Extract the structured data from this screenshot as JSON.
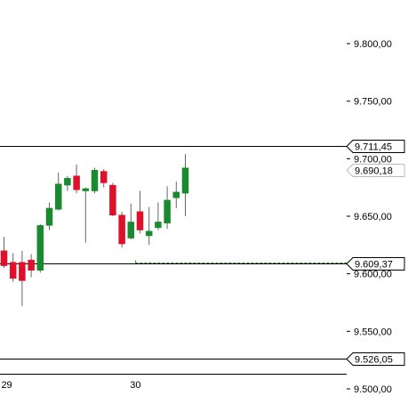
{
  "chart_data": {
    "type": "candlestick",
    "ylim": [
      9500,
      9830
    ],
    "y_ticks": [
      {
        "value": 9800,
        "label": "9.800,00"
      },
      {
        "value": 9750,
        "label": "9.750,00"
      },
      {
        "value": 9700,
        "label": "9.700,00"
      },
      {
        "value": 9650,
        "label": "9.650,00"
      },
      {
        "value": 9600,
        "label": "9.600,00"
      },
      {
        "value": 9550,
        "label": "9.550,00"
      },
      {
        "value": 9500,
        "label": "9.500,00"
      }
    ],
    "x_labels": [
      {
        "index": -0.3,
        "label": "29"
      },
      {
        "index": 13.9,
        "label": "30"
      }
    ],
    "candles": [
      {
        "open": 9620,
        "high": 9632,
        "low": 9605,
        "close": 9607
      },
      {
        "open": 9610,
        "high": 9618,
        "low": 9593,
        "close": 9596
      },
      {
        "open": 9610,
        "high": 9620,
        "low": 9572,
        "close": 9594
      },
      {
        "open": 9612,
        "high": 9617,
        "low": 9597,
        "close": 9603
      },
      {
        "open": 9603,
        "high": 9643,
        "low": 9601,
        "close": 9642
      },
      {
        "open": 9642,
        "high": 9662,
        "low": 9638,
        "close": 9657
      },
      {
        "open": 9656,
        "high": 9688,
        "low": 9655,
        "close": 9678
      },
      {
        "open": 9677,
        "high": 9685,
        "low": 9672,
        "close": 9683
      },
      {
        "open": 9685,
        "high": 9695,
        "low": 9670,
        "close": 9673
      },
      {
        "open": 9672,
        "high": 9675,
        "low": 9627,
        "close": 9674
      },
      {
        "open": 9672,
        "high": 9692,
        "low": 9670,
        "close": 9690
      },
      {
        "open": 9689,
        "high": 9691,
        "low": 9675,
        "close": 9679
      },
      {
        "open": 9677,
        "high": 9679,
        "low": 9650,
        "close": 9651
      },
      {
        "open": 9651,
        "high": 9654,
        "low": 9623,
        "close": 9626
      },
      {
        "open": 9631,
        "high": 9661,
        "low": 9630,
        "close": 9645
      },
      {
        "open": 9654,
        "high": 9672,
        "low": 9635,
        "close": 9638
      },
      {
        "open": 9633,
        "high": 9658,
        "low": 9625,
        "close": 9637
      },
      {
        "open": 9640,
        "high": 9662,
        "low": 9638,
        "close": 9645
      },
      {
        "open": 9644,
        "high": 9676,
        "low": 9639,
        "close": 9664
      },
      {
        "open": 9666,
        "high": 9680,
        "low": 9657,
        "close": 9671
      },
      {
        "open": 9670,
        "high": 9704,
        "low": 9650,
        "close": 9692
      }
    ],
    "horizontal_lines": [
      {
        "value": 9711.45,
        "label": "9.711,45",
        "style": "solid"
      },
      {
        "value": 9609.37,
        "label": "9.609,37",
        "style": "solid"
      },
      {
        "value": 9526.05,
        "label": "9.526,05",
        "style": "solid"
      }
    ],
    "current_price": {
      "value": 9690.18,
      "label": "9.690,18"
    },
    "order_line": {
      "value": 9610,
      "from_index": 14.5
    },
    "colors": {
      "up": "#1a8a2e",
      "down": "#e0102a",
      "line": "#000000",
      "order": "#2e8b2e"
    }
  }
}
